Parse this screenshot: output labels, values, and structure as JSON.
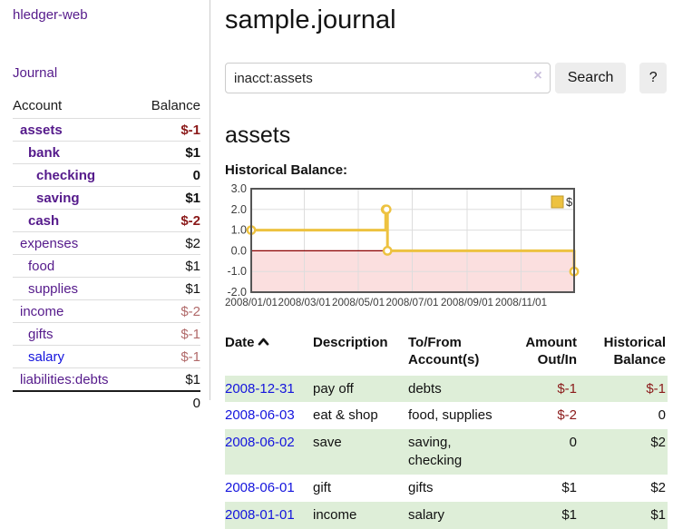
{
  "colors": {
    "accent_purple": "#551a8b",
    "link_blue": "#1414dd",
    "negative_dark": "#8b1a1a",
    "negative_light": "#b16a6a",
    "row_stripe_green": "#deeed8",
    "chart_series_gold": "#EDC240",
    "chart_negative_region": "#fbdfdf",
    "chart_zero_line": "#8b0000"
  },
  "sidebar": {
    "brand": "hledger-web",
    "nav": {
      "journal": "Journal"
    },
    "table": {
      "headers": {
        "account": "Account",
        "balance": "Balance"
      },
      "accounts": [
        {
          "name": "assets",
          "depth": 0,
          "bold": true,
          "link_color": "purple",
          "balance": "$-1",
          "balance_style": "neg-dark"
        },
        {
          "name": "bank",
          "depth": 1,
          "bold": true,
          "link_color": "purple",
          "balance": "$1",
          "balance_style": "pos"
        },
        {
          "name": "checking",
          "depth": 2,
          "bold": true,
          "link_color": "purple",
          "balance": "0",
          "balance_style": "pos"
        },
        {
          "name": "saving",
          "depth": 2,
          "bold": true,
          "link_color": "purple",
          "balance": "$1",
          "balance_style": "pos"
        },
        {
          "name": "cash",
          "depth": 1,
          "bold": true,
          "link_color": "purple",
          "balance": "$-2",
          "balance_style": "neg-dark"
        },
        {
          "name": "expenses",
          "depth": 0,
          "bold": false,
          "link_color": "purple",
          "balance": "$2",
          "balance_style": "pos"
        },
        {
          "name": "food",
          "depth": 1,
          "bold": false,
          "link_color": "purple",
          "balance": "$1",
          "balance_style": "pos"
        },
        {
          "name": "supplies",
          "depth": 1,
          "bold": false,
          "link_color": "purple",
          "balance": "$1",
          "balance_style": "pos"
        },
        {
          "name": "income",
          "depth": 0,
          "bold": false,
          "link_color": "purple",
          "balance": "$-2",
          "balance_style": "neg-light"
        },
        {
          "name": "gifts",
          "depth": 1,
          "bold": false,
          "link_color": "purple",
          "balance": "$-1",
          "balance_style": "neg-light"
        },
        {
          "name": "salary",
          "depth": 1,
          "bold": false,
          "link_color": "blue",
          "balance": "$-1",
          "balance_style": "neg-light"
        },
        {
          "name": "liabilities:debts",
          "depth": 0,
          "bold": false,
          "link_color": "purple",
          "balance": "$1",
          "balance_style": "pos"
        }
      ],
      "total": "0"
    }
  },
  "header": {
    "title": "sample.journal"
  },
  "search": {
    "query": "inacct:assets",
    "clear_icon": "×",
    "search_button": "Search",
    "help_button": "?"
  },
  "account_page": {
    "heading": "assets",
    "chart_label": "Historical Balance:"
  },
  "chart_data": {
    "type": "line",
    "style": "step",
    "title": "Historical Balance",
    "series": [
      {
        "name": "$",
        "color": "#EDC240",
        "points": [
          {
            "date": "2008-01-01",
            "value": 1
          },
          {
            "date": "2008-06-01",
            "value": 2
          },
          {
            "date": "2008-06-02",
            "value": 2
          },
          {
            "date": "2008-06-03",
            "value": 0
          },
          {
            "date": "2008-12-31",
            "value": -1
          }
        ]
      }
    ],
    "x_ticks": [
      "2008/01/01",
      "2008/03/01",
      "2008/05/01",
      "2008/07/01",
      "2008/09/01",
      "2008/11/01"
    ],
    "y_ticks": [
      3,
      2,
      1,
      0,
      -1,
      -2
    ],
    "ylim": [
      -2,
      3
    ],
    "xlim_dates": [
      "2008-01-01",
      "2008-12-31"
    ],
    "legend": {
      "position": "ne",
      "label": "$"
    },
    "grid": true,
    "negative_region_color": "#fbdfdf",
    "zero_line_color": "#8b0000"
  },
  "register": {
    "columns": [
      {
        "label": "Date",
        "sorted": "ascending"
      },
      {
        "label": "Description"
      },
      {
        "label": "To/From Account(s)"
      },
      {
        "label": "Amount Out/In",
        "align": "right"
      },
      {
        "label": "Historical Balance",
        "align": "right"
      }
    ],
    "rows": [
      {
        "date": "2008-12-31",
        "description": "pay off",
        "accounts": "debts",
        "amount": "$-1",
        "amount_negative": true,
        "balance": "$-1",
        "balance_negative": true
      },
      {
        "date": "2008-06-03",
        "description": "eat & shop",
        "accounts": "food, supplies",
        "amount": "$-2",
        "amount_negative": true,
        "balance": "0",
        "balance_negative": false
      },
      {
        "date": "2008-06-02",
        "description": "save",
        "accounts": "saving, checking",
        "amount": "0",
        "amount_negative": false,
        "balance": "$2",
        "balance_negative": false
      },
      {
        "date": "2008-06-01",
        "description": "gift",
        "accounts": "gifts",
        "amount": "$1",
        "amount_negative": false,
        "balance": "$2",
        "balance_negative": false
      },
      {
        "date": "2008-01-01",
        "description": "income",
        "accounts": "salary",
        "amount": "$1",
        "amount_negative": false,
        "balance": "$1",
        "balance_negative": false
      }
    ]
  }
}
